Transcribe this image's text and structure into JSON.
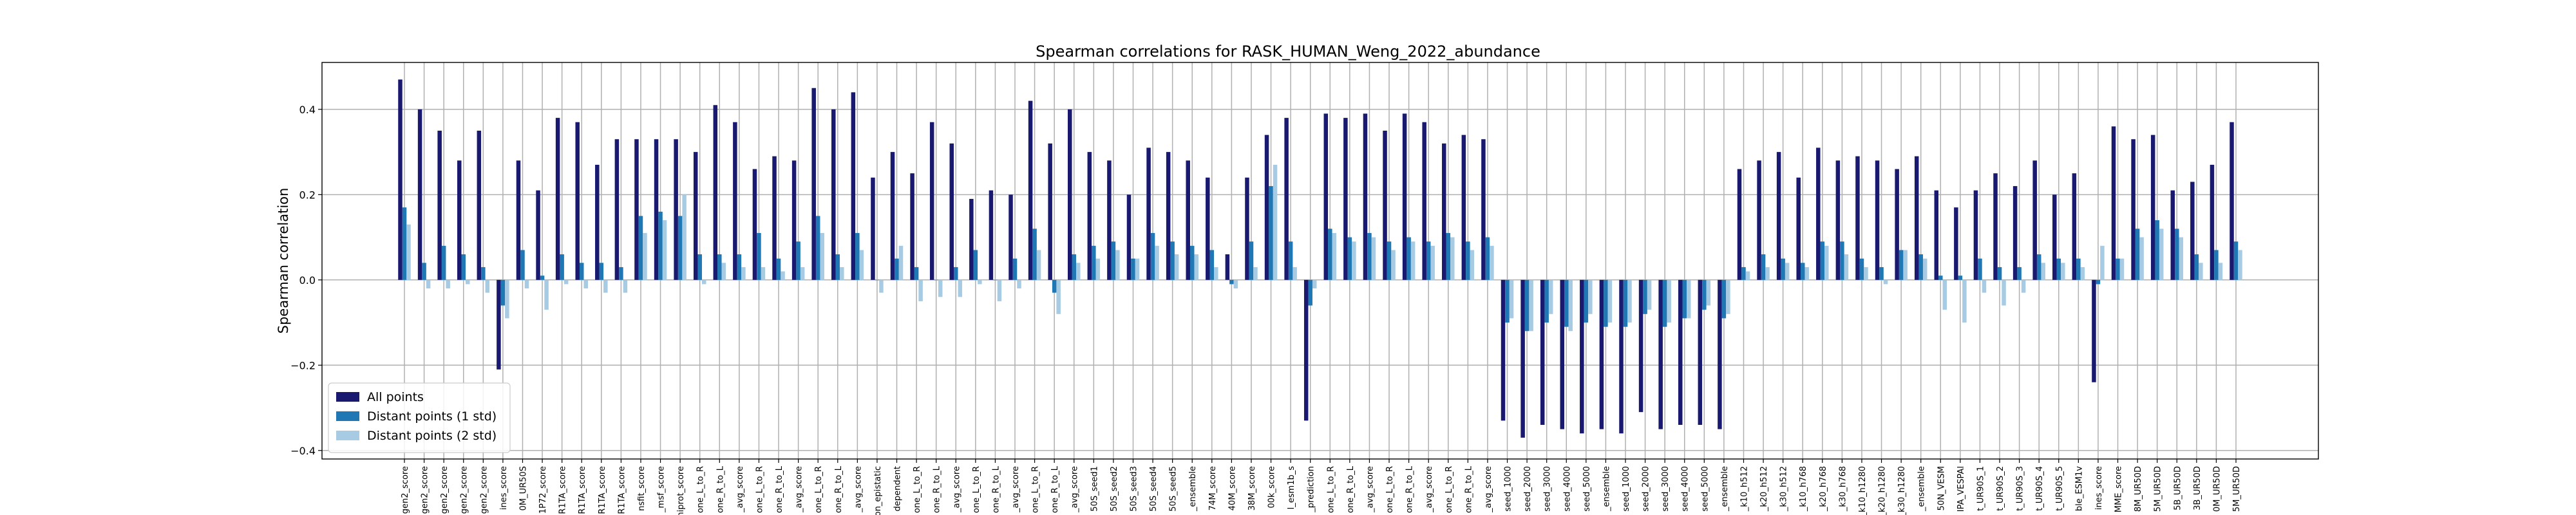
{
  "chart_data": {
    "type": "bar",
    "title": "Spearman correlations for RASK_HUMAN_Weng_2022_abundance",
    "xlabel": "",
    "ylabel": "Spearman correlation",
    "ylim": [
      -0.42,
      0.51
    ],
    "yticks": [
      -0.4,
      -0.2,
      0.0,
      0.2,
      0.4
    ],
    "ytick_labels": [
      "−0.4",
      "−0.2",
      "0.0",
      "0.2",
      "0.4"
    ],
    "grid": true,
    "legend_position": "lower-left",
    "categories": [
      "gen2_score",
      "gen2_score",
      "gen2_score",
      "gen2_score",
      "gen2_score",
      "ines_score",
      "0M_UR50S",
      "1P72_score",
      "R1TA_score",
      "R1TA_score",
      "R1TA_score",
      "R1TA_score",
      "nsfit_score",
      "_msf_score",
      "l_uniprot_score",
      "one_L_to_R",
      "one_R_to_L",
      "_avg_score",
      "one_L_to_R",
      "one_R_to_L",
      "_avg_score",
      "one_L_to_R",
      "one_R_to_L",
      "_avg_score",
      "on_epistatic",
      "dependent",
      "one_L_to_R",
      "one_R_to_L",
      "_avg_score",
      "one_L_to_R",
      "one_R_to_L",
      "_avg_score",
      "one_L_to_R",
      "one_R_to_L",
      "_avg_score",
      "50S_seed1",
      "50S_seed2",
      "50S_seed3",
      "50S_seed4",
      "50S_seed5",
      "_ensemble",
      "74M_score",
      "40M_score",
      "38M_score",
      "00k_score",
      "l_esm1b_s",
      "_prediction",
      "one_L_to_R",
      "one_R_to_L",
      "_avg_score",
      "one_L_to_R",
      "one_R_to_L",
      "_avg_score",
      "one_L_to_R",
      "one_R_to_L",
      "_avg_score",
      "seed_1000",
      "seed_2000",
      "seed_3000",
      "seed_4000",
      "seed_5000",
      "_ensemble",
      "seed_1000",
      "seed_2000",
      "seed_3000",
      "seed_4000",
      "seed_5000",
      "_ensemble",
      "_k10_h512",
      "_k20_h512",
      "_k30_h512",
      "_k10_h768",
      "_k20_h768",
      "_k30_h768",
      "_k10_h1280",
      "_k20_h1280",
      "_k30_h1280",
      "_ensemble",
      "50N_VESM",
      "IPA_VESPAl",
      "t_UR90S_1",
      "t_UR90S_2",
      "t_UR90S_3",
      "t_UR90S_4",
      "t_UR90S_5",
      "ble_ESM1v",
      "ines_score",
      "MME_score",
      "8M_UR50D",
      "5M_UR50D",
      "5B_UR50D",
      "3B_UR50D",
      "0M_UR50D",
      "5M_UR50D"
    ],
    "series": [
      {
        "name": "All points",
        "color": "#191970",
        "values": [
          0.47,
          0.4,
          0.35,
          0.28,
          0.35,
          -0.21,
          0.28,
          0.21,
          0.38,
          0.37,
          0.27,
          0.33,
          0.33,
          0.33,
          0.33,
          0.3,
          0.41,
          0.37,
          0.26,
          0.29,
          0.28,
          0.45,
          0.4,
          0.44,
          0.24,
          0.3,
          0.25,
          0.37,
          0.32,
          0.19,
          0.21,
          0.2,
          0.42,
          0.32,
          0.4,
          0.3,
          0.28,
          0.2,
          0.31,
          0.3,
          0.28,
          0.24,
          0.06,
          0.24,
          0.34,
          0.38,
          -0.33,
          0.39,
          0.38,
          0.39,
          0.35,
          0.39,
          0.37,
          0.32,
          0.34,
          0.33,
          -0.33,
          -0.37,
          -0.34,
          -0.35,
          -0.36,
          -0.35,
          -0.36,
          -0.31,
          -0.35,
          -0.34,
          -0.34,
          -0.35,
          0.26,
          0.28,
          0.3,
          0.24,
          0.31,
          0.28,
          0.29,
          0.28,
          0.26,
          0.29,
          0.21,
          0.17,
          0.21,
          0.25,
          0.22,
          0.28,
          0.2,
          0.25,
          -0.24,
          0.36,
          0.33,
          0.34,
          0.21,
          0.23,
          0.27,
          0.37
        ]
      },
      {
        "name": "Distant points (1 std)",
        "color": "#1f77b4",
        "values": [
          0.17,
          0.04,
          0.08,
          0.06,
          0.03,
          -0.06,
          0.07,
          0.01,
          0.06,
          0.04,
          0.04,
          0.03,
          0.15,
          0.16,
          0.15,
          0.06,
          0.06,
          0.06,
          0.11,
          0.05,
          0.09,
          0.15,
          0.06,
          0.11,
          0.0,
          0.05,
          0.03,
          0.0,
          0.03,
          0.07,
          0.0,
          0.05,
          0.12,
          -0.03,
          0.06,
          0.08,
          0.09,
          0.05,
          0.11,
          0.09,
          0.08,
          0.07,
          -0.01,
          0.09,
          0.22,
          0.09,
          -0.06,
          0.12,
          0.1,
          0.11,
          0.09,
          0.1,
          0.09,
          0.11,
          0.09,
          0.1,
          -0.1,
          -0.12,
          -0.1,
          -0.11,
          -0.1,
          -0.11,
          -0.11,
          -0.08,
          -0.11,
          -0.09,
          -0.07,
          -0.09,
          0.03,
          0.06,
          0.05,
          0.04,
          0.09,
          0.09,
          0.05,
          0.03,
          0.07,
          0.06,
          0.01,
          0.01,
          0.05,
          0.03,
          0.03,
          0.06,
          0.05,
          0.05,
          -0.01,
          0.05,
          0.12,
          0.14,
          0.12,
          0.06,
          0.07,
          0.09
        ]
      },
      {
        "name": "Distant points (2 std)",
        "color": "#a6cbe3",
        "values": [
          0.13,
          -0.02,
          -0.02,
          -0.01,
          -0.03,
          -0.09,
          -0.02,
          -0.07,
          -0.01,
          -0.02,
          -0.03,
          -0.03,
          0.11,
          0.14,
          0.2,
          -0.01,
          0.04,
          0.03,
          0.03,
          0.02,
          0.03,
          0.11,
          0.03,
          0.07,
          -0.03,
          0.08,
          -0.05,
          -0.04,
          -0.04,
          -0.01,
          -0.05,
          -0.02,
          0.07,
          -0.08,
          0.04,
          0.05,
          0.07,
          0.05,
          0.08,
          0.06,
          0.06,
          0.03,
          -0.02,
          0.03,
          0.27,
          0.03,
          -0.02,
          0.11,
          0.09,
          0.1,
          0.07,
          0.09,
          0.08,
          0.1,
          0.07,
          0.08,
          -0.09,
          -0.12,
          -0.08,
          -0.12,
          -0.08,
          -0.1,
          -0.1,
          -0.07,
          -0.1,
          -0.09,
          -0.06,
          -0.08,
          0.02,
          0.03,
          0.04,
          0.03,
          0.08,
          0.06,
          0.03,
          -0.01,
          0.07,
          0.05,
          -0.07,
          -0.1,
          -0.03,
          -0.06,
          -0.03,
          0.04,
          0.04,
          0.03,
          0.08,
          0.05,
          0.1,
          0.12,
          0.1,
          0.04,
          0.04,
          0.07
        ]
      }
    ]
  }
}
